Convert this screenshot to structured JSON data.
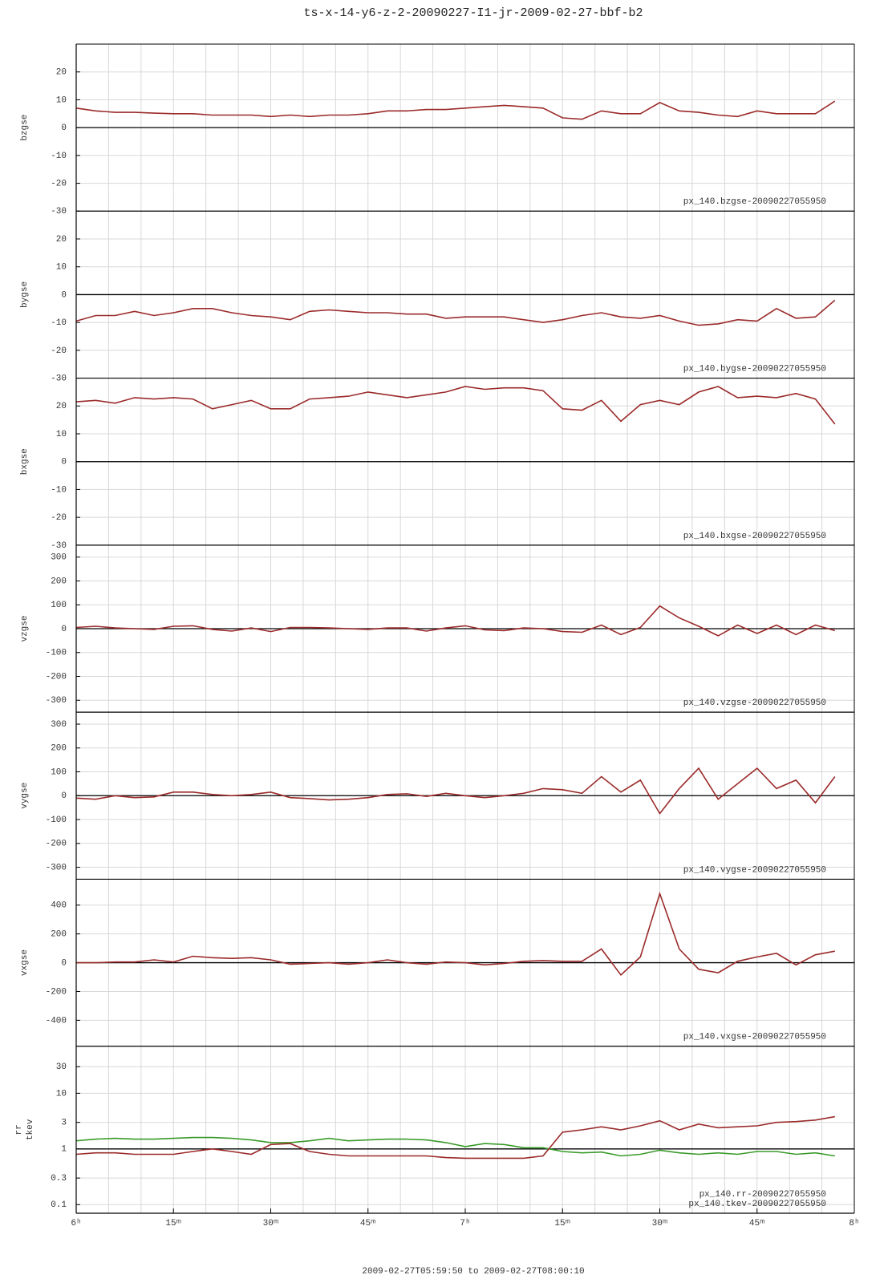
{
  "chart_data": {
    "type": "multipanel",
    "title": "ts-x-14-y6-z-2-20090227-I1-jr-2009-02-27-bbf-b2",
    "xlabel": "2009-02-27T05:59:50 to 2009-02-27T08:00:10",
    "xlim": [
      0,
      120
    ],
    "xticks": [
      {
        "value": 0,
        "label": "6ʰ"
      },
      {
        "value": 15,
        "label": "15ᵐ"
      },
      {
        "value": 30,
        "label": "30ᵐ"
      },
      {
        "value": 45,
        "label": "45ᵐ"
      },
      {
        "value": 60,
        "label": "7ʰ"
      },
      {
        "value": 75,
        "label": "15ᵐ"
      },
      {
        "value": 90,
        "label": "30ᵐ"
      },
      {
        "value": 105,
        "label": "45ᵐ"
      },
      {
        "value": 120,
        "label": "8ʰ"
      }
    ],
    "xminorticks": [
      5,
      10,
      20,
      25,
      35,
      40,
      50,
      55,
      65,
      70,
      80,
      85,
      95,
      100,
      110,
      115
    ],
    "x": [
      0,
      3,
      6,
      9,
      12,
      15,
      18,
      21,
      24,
      27,
      30,
      33,
      36,
      39,
      42,
      45,
      48,
      51,
      54,
      57,
      60,
      63,
      66,
      69,
      72,
      75,
      78,
      81,
      84,
      87,
      90,
      93,
      96,
      99,
      102,
      105,
      108,
      111,
      114,
      117
    ],
    "panels": [
      {
        "ylabels": [
          "bzgse"
        ],
        "ylim": [
          -30,
          30
        ],
        "yticks": [
          -30,
          -20,
          -10,
          0,
          10,
          20
        ],
        "refline": 0,
        "log": false,
        "series": [
          {
            "name": "px_140.bzgse-20090227055950",
            "color": "#9b2a2a",
            "values": [
              7,
              6,
              5.5,
              5.5,
              5.2,
              5,
              5,
              4.5,
              4.5,
              4.5,
              4,
              4.5,
              4,
              4.5,
              4.5,
              5,
              6,
              6,
              6.5,
              6.5,
              7,
              7.5,
              8,
              7.5,
              7,
              3.5,
              3,
              6,
              5,
              5,
              9,
              6,
              5.5,
              4.5,
              4,
              6,
              5,
              5,
              5,
              9.5
            ]
          }
        ]
      },
      {
        "ylabels": [
          "bygse"
        ],
        "ylim": [
          -30,
          30
        ],
        "yticks": [
          -30,
          -20,
          -10,
          0,
          10,
          20
        ],
        "refline": 0,
        "log": false,
        "series": [
          {
            "name": "px_140.bygse-20090227055950",
            "color": "#9b2a2a",
            "values": [
              -9.5,
              -7.5,
              -7.5,
              -6,
              -7.5,
              -6.5,
              -5,
              -5,
              -6.5,
              -7.5,
              -8,
              -9,
              -6,
              -5.5,
              -6,
              -6.5,
              -6.5,
              -7,
              -7,
              -8.5,
              -8,
              -8,
              -8,
              -9,
              -10,
              -9,
              -7.5,
              -6.5,
              -8,
              -8.5,
              -7.5,
              -9.5,
              -11,
              -10.5,
              -9,
              -9.5,
              -5,
              -8.5,
              -8,
              -2
            ]
          }
        ]
      },
      {
        "ylabels": [
          "bxgse"
        ],
        "ylim": [
          -30,
          30
        ],
        "yticks": [
          -30,
          -20,
          -10,
          0,
          10,
          20
        ],
        "refline": 0,
        "log": false,
        "series": [
          {
            "name": "px_140.bxgse-20090227055950",
            "color": "#9b2a2a",
            "values": [
              21.5,
              22,
              21,
              23,
              22.5,
              23,
              22.5,
              19,
              20.5,
              22,
              19,
              19,
              22.5,
              23,
              23.5,
              25,
              24,
              23,
              24,
              25,
              27,
              26,
              26.5,
              26.5,
              25.5,
              19,
              18.5,
              22,
              14.5,
              20.5,
              22,
              20.5,
              25,
              27,
              23,
              23.5,
              23,
              24.5,
              22.5,
              13.5
            ]
          }
        ]
      },
      {
        "ylabels": [
          "vzgse"
        ],
        "ylim": [
          -350,
          350
        ],
        "yticks": [
          -300,
          -200,
          -100,
          0,
          100,
          200,
          300
        ],
        "refline": 0,
        "log": false,
        "series": [
          {
            "name": "px_140.vzgse-20090227055950",
            "color": "#9b2a2a",
            "values": [
              5,
              10,
              3,
              0,
              -3,
              10,
              12,
              -3,
              -10,
              3,
              -12,
              5,
              5,
              3,
              0,
              -3,
              3,
              3,
              -10,
              3,
              12,
              -5,
              -8,
              3,
              0,
              -12,
              -15,
              15,
              -25,
              5,
              95,
              45,
              10,
              -30,
              15,
              -20,
              15,
              -25,
              15,
              -8
            ]
          }
        ]
      },
      {
        "ylabels": [
          "vygse"
        ],
        "ylim": [
          -350,
          350
        ],
        "yticks": [
          -300,
          -200,
          -100,
          0,
          100,
          200,
          300
        ],
        "refline": 0,
        "log": false,
        "series": [
          {
            "name": "px_140.vygse-20090227055950",
            "color": "#9b2a2a",
            "values": [
              -10,
              -15,
              0,
              -8,
              -5,
              15,
              15,
              5,
              0,
              5,
              15,
              -8,
              -12,
              -18,
              -15,
              -8,
              5,
              8,
              -3,
              10,
              0,
              -8,
              0,
              10,
              30,
              25,
              10,
              80,
              15,
              65,
              -75,
              30,
              115,
              -15,
              50,
              115,
              30,
              65,
              -30,
              80
            ]
          }
        ]
      },
      {
        "ylabels": [
          "vxgse"
        ],
        "ylim": [
          -580,
          580
        ],
        "yticks": [
          -400,
          -200,
          0,
          200,
          400
        ],
        "refline": 0,
        "log": false,
        "series": [
          {
            "name": "px_140.vxgse-20090227055950",
            "color": "#9b2a2a",
            "values": [
              0,
              0,
              5,
              5,
              20,
              5,
              45,
              35,
              30,
              35,
              20,
              -10,
              -5,
              0,
              -10,
              0,
              20,
              0,
              -10,
              5,
              0,
              -15,
              -5,
              10,
              15,
              10,
              10,
              95,
              -85,
              40,
              480,
              95,
              -45,
              -70,
              10,
              40,
              65,
              -15,
              55,
              80
            ]
          }
        ]
      },
      {
        "ylabels": [
          "rr",
          "tkev"
        ],
        "ylim": [
          0.07,
          70
        ],
        "yticks": [
          0.1,
          0.3,
          1,
          3,
          10,
          30
        ],
        "refline": 1,
        "log": true,
        "series": [
          {
            "name": "px_140.rr-20090227055950",
            "color": "#3a9b2a",
            "values": [
              1.4,
              1.5,
              1.55,
              1.5,
              1.5,
              1.55,
              1.6,
              1.6,
              1.55,
              1.45,
              1.3,
              1.3,
              1.4,
              1.55,
              1.4,
              1.45,
              1.5,
              1.5,
              1.45,
              1.3,
              1.1,
              1.25,
              1.2,
              1.05,
              1.05,
              0.9,
              0.85,
              0.88,
              0.75,
              0.8,
              0.95,
              0.85,
              0.8,
              0.85,
              0.8,
              0.9,
              0.9,
              0.8,
              0.85,
              0.75
            ]
          },
          {
            "name": "px_140.tkev-20090227055950",
            "color": "#9b2a2a",
            "values": [
              0.8,
              0.85,
              0.85,
              0.8,
              0.8,
              0.8,
              0.9,
              1,
              0.9,
              0.8,
              1.2,
              1.25,
              0.9,
              0.8,
              0.75,
              0.75,
              0.75,
              0.75,
              0.75,
              0.7,
              0.68,
              0.68,
              0.68,
              0.68,
              0.75,
              2,
              2.2,
              2.5,
              2.2,
              2.6,
              3.2,
              2.2,
              2.8,
              2.4,
              2.5,
              2.6,
              3,
              3.1,
              3.3,
              3.8
            ]
          }
        ]
      }
    ]
  }
}
